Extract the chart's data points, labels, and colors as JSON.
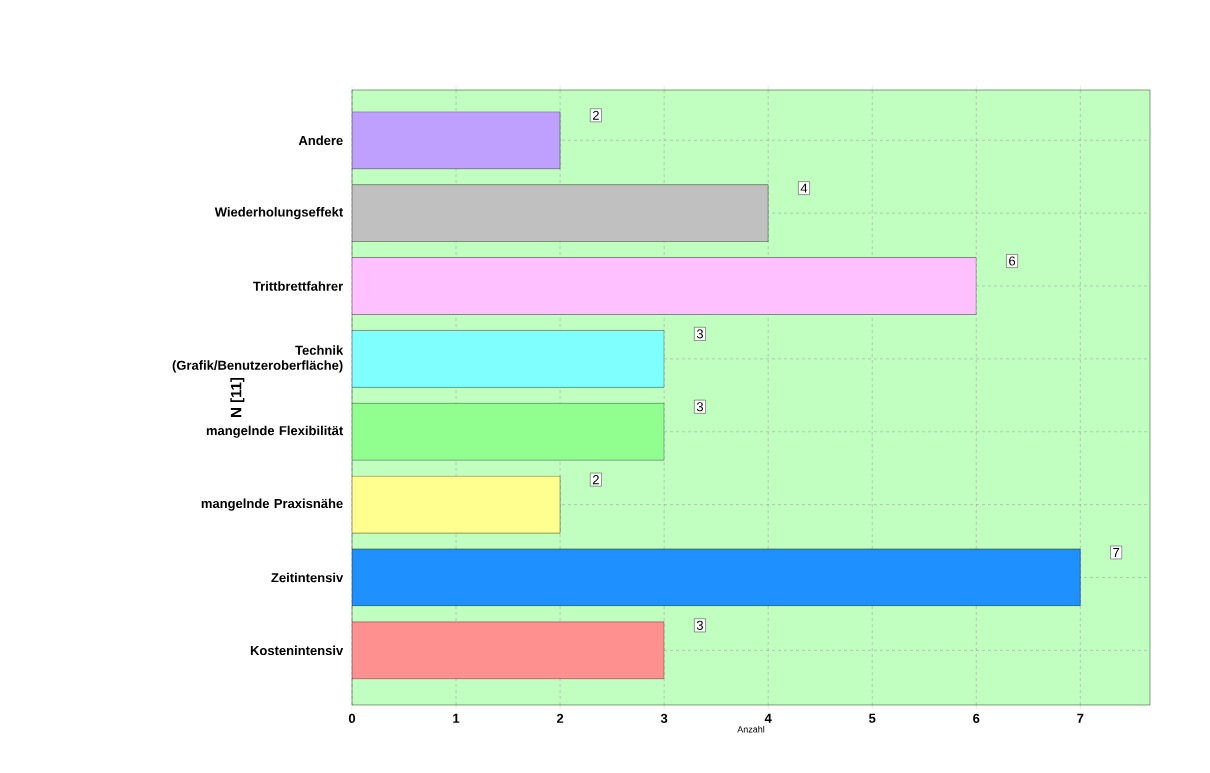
{
  "chart_data": {
    "type": "bar",
    "orientation": "horizontal",
    "xlabel": "Anzahl",
    "ylabel": "N [11]",
    "categories": [
      "Andere",
      "Wiederholungseffekt",
      "Trittbrettfahrer",
      "Technik (Grafik/Benutzeroberfläche)",
      "mangelnde Flexibilität",
      "mangelnde Praxisnähe",
      "Zeitintensiv",
      "Kostenintensiv"
    ],
    "values": [
      2,
      4,
      6,
      3,
      3,
      2,
      7,
      3
    ],
    "colors": [
      "#c0a0ff",
      "#c0c0c0",
      "#ffc0ff",
      "#80ffff",
      "#90ff90",
      "#ffff90",
      "#1e90ff",
      "#ff9090"
    ],
    "xlim": [
      0,
      7.67
    ],
    "xticks": [
      0,
      1,
      2,
      3,
      4,
      5,
      6,
      7
    ],
    "grid": true,
    "data_labels": true
  }
}
